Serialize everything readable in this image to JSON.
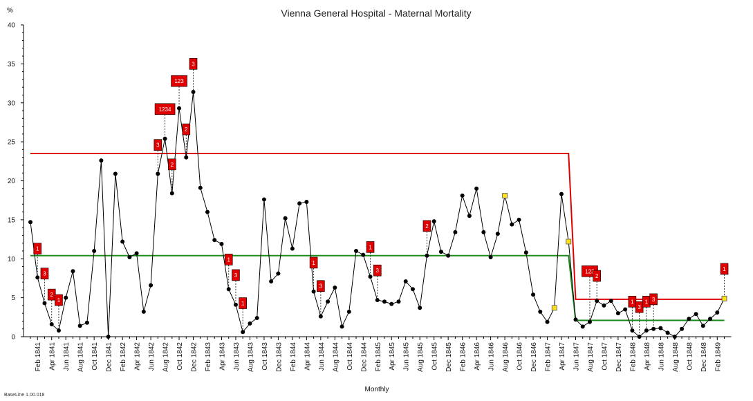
{
  "chart_data": {
    "type": "line",
    "title": "Vienna General Hospital - Maternal Mortality",
    "ylabel": "%",
    "xlabel": "Monthly",
    "footer": "BaseLine 1.00.018",
    "ylim": [
      0,
      40
    ],
    "y_ticks": [
      0,
      5,
      10,
      15,
      20,
      25,
      30,
      35,
      40
    ],
    "grid": false,
    "legend": "none",
    "x_categories": [
      "Jan 1841",
      "Feb 1841",
      "Mar 1841",
      "Apr 1841",
      "May 1841",
      "Jun 1841",
      "Jul 1841",
      "Aug 1841",
      "Sep 1841",
      "Oct 1841",
      "Nov 1841",
      "Dec 1841",
      "Jan 1842",
      "Feb 1842",
      "Mar 1842",
      "Apr 1842",
      "May 1842",
      "Jun 1842",
      "Jul 1842",
      "Aug 1842",
      "Sep 1842",
      "Oct 1842",
      "Nov 1842",
      "Dec 1842",
      "Jan 1843",
      "Feb 1843",
      "Mar 1843",
      "Apr 1843",
      "May 1843",
      "Jun 1843",
      "Jul 1843",
      "Aug 1843",
      "Sep 1843",
      "Oct 1843",
      "Nov 1843",
      "Dec 1843",
      "Jan 1844",
      "Feb 1844",
      "Mar 1844",
      "Apr 1844",
      "May 1844",
      "Jun 1844",
      "Jul 1844",
      "Aug 1844",
      "Sep 1844",
      "Oct 1844",
      "Nov 1844",
      "Dec 1844",
      "Jan 1845",
      "Feb 1845",
      "Mar 1845",
      "Apr 1845",
      "May 1845",
      "Jun 1845",
      "Jul 1845",
      "Aug 1845",
      "Sep 1845",
      "Oct 1845",
      "Nov 1845",
      "Dec 1845",
      "Jan 1846",
      "Feb 1846",
      "Mar 1846",
      "Apr 1846",
      "May 1846",
      "Jun 1846",
      "Jul 1846",
      "Aug 1846",
      "Sep 1846",
      "Oct 1846",
      "Nov 1846",
      "Dec 1846",
      "Jan 1847",
      "Feb 1847",
      "Mar 1847",
      "Apr 1847",
      "May 1847",
      "Jun 1847",
      "Jul 1847",
      "Aug 1847",
      "Sep 1847",
      "Oct 1847",
      "Nov 1847",
      "Dec 1847",
      "Jan 1848",
      "Feb 1848",
      "Mar 1848",
      "Apr 1848",
      "May 1848",
      "Jun 1848",
      "Jul 1848",
      "Aug 1848",
      "Sep 1848",
      "Oct 1848",
      "Nov 1848",
      "Dec 1848",
      "Jan 1849",
      "Feb 1849",
      "Mar 1849"
    ],
    "x_tick_labels": [
      "Feb 1841",
      "Apr 1841",
      "Jun 1841",
      "Aug 1841",
      "Oct 1841",
      "Dec 1841",
      "Feb 1842",
      "Apr 1842",
      "Jun 1842",
      "Aug 1842",
      "Oct 1842",
      "Dec 1842",
      "Feb 1843",
      "Apr 1843",
      "Jun 1843",
      "Aug 1843",
      "Oct 1843",
      "Dec 1843",
      "Feb 1844",
      "Apr 1844",
      "Jun 1844",
      "Aug 1844",
      "Oct 1844",
      "Dec 1844",
      "Feb 1845",
      "Apr 1845",
      "Jun 1845",
      "Aug 1845",
      "Oct 1845",
      "Dec 1845",
      "Feb 1846",
      "Apr 1846",
      "Jun 1846",
      "Aug 1846",
      "Oct 1846",
      "Dec 1846",
      "Feb 1847",
      "Apr 1847",
      "Jun 1847",
      "Aug 1847",
      "Oct 1847",
      "Dec 1847",
      "Feb 1848",
      "Apr 1848",
      "Jun 1848",
      "Aug 1848",
      "Oct 1848",
      "Dec 1848",
      "Feb 1849"
    ],
    "series": [
      {
        "color": "#000000",
        "values": [
          14.7,
          7.6,
          4.3,
          1.6,
          0.8,
          5.0,
          8.4,
          1.4,
          1.8,
          11.0,
          22.6,
          0.0,
          20.9,
          12.2,
          10.2,
          10.7,
          3.2,
          6.6,
          20.9,
          25.4,
          18.4,
          29.3,
          23.0,
          31.4,
          19.1,
          16.0,
          12.4,
          11.9,
          6.1,
          4.1,
          0.6,
          1.7,
          2.4,
          17.6,
          7.1,
          8.1,
          15.2,
          11.3,
          17.1,
          17.3,
          5.8,
          2.6,
          4.5,
          6.3,
          1.3,
          3.2,
          11.0,
          10.5,
          7.7,
          4.7,
          4.5,
          4.2,
          4.5,
          7.1,
          6.1,
          3.7,
          10.4,
          14.8,
          10.9,
          10.4,
          13.4,
          18.1,
          15.5,
          19.0,
          13.4,
          10.2,
          13.2,
          18.1,
          14.4,
          15.0,
          10.8,
          5.4,
          3.2,
          1.9,
          3.7,
          18.3,
          12.2,
          2.2,
          1.3,
          1.9,
          4.6,
          4.0,
          4.6,
          3.0,
          3.5,
          0.8,
          0.0,
          0.8,
          1.0,
          1.1,
          0.5,
          0.0,
          1.0,
          2.3,
          2.9,
          1.4,
          2.3,
          3.1,
          4.9
        ],
        "highlighted_points": [
          {
            "index": 67,
            "color": "#ffe01a"
          },
          {
            "index": 74,
            "color": "#ffe01a"
          },
          {
            "index": 76,
            "color": "#ffe01a"
          },
          {
            "index": 98,
            "color": "#ffe01a"
          }
        ]
      }
    ],
    "reference_lines": [
      {
        "color": "#dd0000",
        "segments": [
          {
            "x_from": 0,
            "x_to": 76,
            "y": 23.5
          },
          {
            "x_from": 77,
            "x_to": 98,
            "y": 4.8
          }
        ]
      },
      {
        "color": "#1a8a1a",
        "segments": [
          {
            "x_from": 0,
            "x_to": 76,
            "y": 10.4
          },
          {
            "x_from": 77,
            "x_to": 98,
            "y": 2.1
          }
        ]
      }
    ],
    "annotations": [
      {
        "index": 1,
        "label_y": 11.3,
        "text": "1"
      },
      {
        "index": 2,
        "label_y": 8.1,
        "text": "3"
      },
      {
        "index": 3,
        "label_y": 5.4,
        "text": "2"
      },
      {
        "index": 4,
        "label_y": 4.7,
        "text": "1"
      },
      {
        "index": 18,
        "label_y": 24.6,
        "text": "3"
      },
      {
        "index": 19,
        "label_y": 29.2,
        "text": "1234"
      },
      {
        "index": 20,
        "label_y": 22.1,
        "text": "2"
      },
      {
        "index": 21,
        "label_y": 32.8,
        "text": "123"
      },
      {
        "index": 22,
        "label_y": 26.6,
        "text": "2"
      },
      {
        "index": 23,
        "label_y": 35.0,
        "text": "3"
      },
      {
        "index": 28,
        "label_y": 9.9,
        "text": "1"
      },
      {
        "index": 29,
        "label_y": 7.9,
        "text": "3"
      },
      {
        "index": 30,
        "label_y": 4.3,
        "text": "1"
      },
      {
        "index": 40,
        "label_y": 9.5,
        "text": "1"
      },
      {
        "index": 41,
        "label_y": 6.5,
        "text": "3"
      },
      {
        "index": 48,
        "label_y": 11.5,
        "text": "1"
      },
      {
        "index": 49,
        "label_y": 8.5,
        "text": "3"
      },
      {
        "index": 56,
        "label_y": 14.2,
        "text": "2"
      },
      {
        "index": 79,
        "label_y": 8.4,
        "text": "123"
      },
      {
        "index": 80,
        "label_y": 7.8,
        "text": "2"
      },
      {
        "index": 85,
        "label_y": 4.5,
        "text": "1"
      },
      {
        "index": 86,
        "label_y": 3.8,
        "text": "3"
      },
      {
        "index": 87,
        "label_y": 4.5,
        "text": "1"
      },
      {
        "index": 88,
        "label_y": 4.8,
        "text": "3"
      },
      {
        "index": 98,
        "label_y": 8.7,
        "text": "1"
      }
    ],
    "annotation_color": "#e00000"
  }
}
